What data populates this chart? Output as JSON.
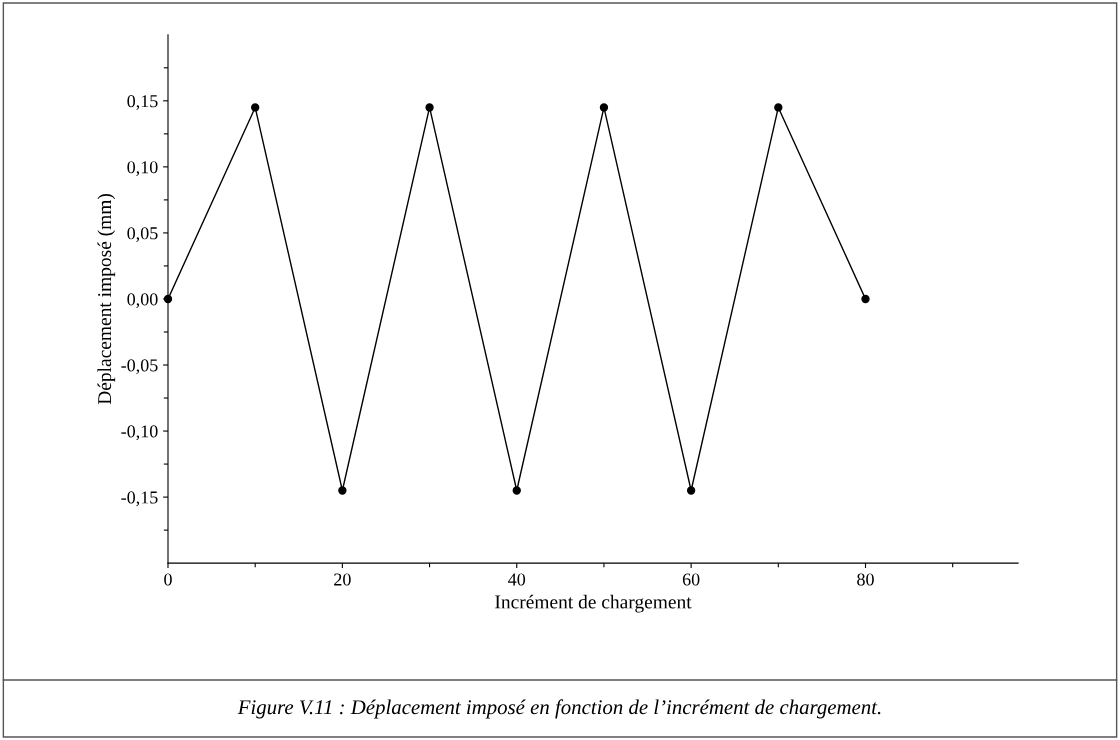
{
  "chart_data": {
    "type": "line",
    "xlabel": "Incrément de chargement",
    "ylabel": "Déplacement imposé (mm)",
    "x": [
      0,
      10,
      20,
      30,
      40,
      50,
      60,
      70,
      80
    ],
    "series": [
      {
        "color": "#000000",
        "values": [
          0.0,
          0.145,
          -0.145,
          0.145,
          -0.145,
          0.145,
          -0.145,
          0.145,
          0.0
        ]
      }
    ],
    "marker": "circle",
    "line_style": "solid",
    "grid": false,
    "legend": false,
    "xlim": [
      0,
      97.5
    ],
    "xticks": [
      0,
      {
        "value": 10,
        "label": null
      },
      20,
      {
        "value": 30,
        "label": null
      },
      40,
      {
        "value": 50,
        "label": null
      },
      60,
      {
        "value": 70,
        "label": null
      },
      80,
      {
        "value": 90,
        "label": null
      }
    ],
    "ylim": [
      -0.2,
      0.2
    ],
    "yticks": [
      {
        "value": -0.175,
        "label": null
      },
      {
        "value": -0.15,
        "label": "-0,15"
      },
      {
        "value": -0.125,
        "label": null
      },
      {
        "value": -0.1,
        "label": "-0,10"
      },
      {
        "value": -0.075,
        "label": null
      },
      {
        "value": -0.05,
        "label": "-0,05"
      },
      {
        "value": -0.025,
        "label": null
      },
      {
        "value": 0,
        "label": "0,00"
      },
      {
        "value": 0.025,
        "label": null
      },
      {
        "value": 0.05,
        "label": "0,05"
      },
      {
        "value": 0.075,
        "label": null
      },
      {
        "value": 0.1,
        "label": "0,10"
      },
      {
        "value": 0.125,
        "label": null
      },
      {
        "value": 0.15,
        "label": "0,15"
      },
      {
        "value": 0.175,
        "label": null
      }
    ],
    "annotations": [
      "Figure V.11 : Déplacement imposé en fonction de l’incrément de chargement."
    ]
  }
}
